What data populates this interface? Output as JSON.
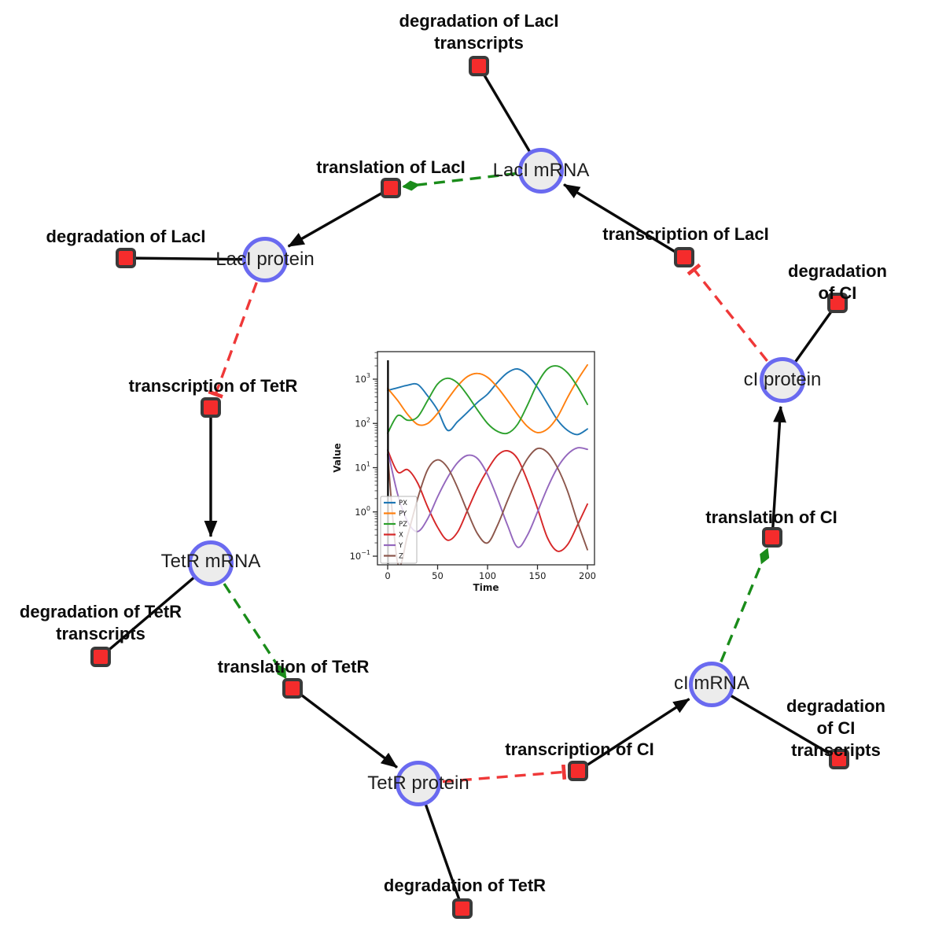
{
  "diagram": {
    "species": [
      {
        "id": "laci-mrna",
        "label": "LacI mRNA"
      },
      {
        "id": "laci-protein",
        "label": "LacI protein"
      },
      {
        "id": "tetr-mrna",
        "label": "TetR mRNA"
      },
      {
        "id": "tetr-protein",
        "label": "TetR protein"
      },
      {
        "id": "ci-mrna",
        "label": "cI mRNA"
      },
      {
        "id": "ci-protein",
        "label": "cI protein"
      }
    ],
    "reactions": [
      {
        "id": "deg-laci-transcripts",
        "label": "degradation of LacI\ntranscripts"
      },
      {
        "id": "translation-laci",
        "label": "translation of LacI"
      },
      {
        "id": "deg-laci",
        "label": "degradation of LacI"
      },
      {
        "id": "transcription-laci",
        "label": "transcription of LacI"
      },
      {
        "id": "deg-ci",
        "label": "degradation of CI"
      },
      {
        "id": "transcription-tetr",
        "label": "transcription of TetR"
      },
      {
        "id": "deg-tetr-transcripts",
        "label": "degradation of TetR\ntranscripts"
      },
      {
        "id": "translation-tetr",
        "label": "translation of TetR"
      },
      {
        "id": "deg-tetr",
        "label": "degradation of TetR"
      },
      {
        "id": "transcription-ci",
        "label": "transcription of CI"
      },
      {
        "id": "deg-ci-transcripts",
        "label": "degradation of CI\ntranscripts"
      },
      {
        "id": "translation-ci",
        "label": "translation of CI"
      }
    ],
    "edges": [
      {
        "from": "LacI mRNA",
        "to": "degradation of LacI transcripts",
        "type": "consumption"
      },
      {
        "from": "LacI protein",
        "to": "degradation of LacI",
        "type": "consumption"
      },
      {
        "from": "TetR mRNA",
        "to": "degradation of TetR transcripts",
        "type": "consumption"
      },
      {
        "from": "TetR protein",
        "to": "degradation of TetR",
        "type": "consumption"
      },
      {
        "from": "cI mRNA",
        "to": "degradation of CI transcripts",
        "type": "consumption"
      },
      {
        "from": "cI protein",
        "to": "degradation of CI",
        "type": "consumption"
      },
      {
        "from": "translation of LacI",
        "to": "LacI protein",
        "type": "production"
      },
      {
        "from": "transcription of TetR",
        "to": "TetR mRNA",
        "type": "production"
      },
      {
        "from": "translation of TetR",
        "to": "TetR protein",
        "type": "production"
      },
      {
        "from": "transcription of CI",
        "to": "cI mRNA",
        "type": "production"
      },
      {
        "from": "translation of CI",
        "to": "cI protein",
        "type": "production"
      },
      {
        "from": "transcription of LacI",
        "to": "LacI mRNA",
        "type": "production"
      },
      {
        "from": "LacI mRNA",
        "to": "translation of LacI",
        "type": "catalysis"
      },
      {
        "from": "TetR mRNA",
        "to": "translation of TetR",
        "type": "catalysis"
      },
      {
        "from": "cI mRNA",
        "to": "translation of CI",
        "type": "catalysis"
      },
      {
        "from": "LacI protein",
        "to": "transcription of TetR",
        "type": "inhibition"
      },
      {
        "from": "TetR protein",
        "to": "transcription of CI",
        "type": "inhibition"
      },
      {
        "from": "cI protein",
        "to": "transcription of LacI",
        "type": "inhibition"
      }
    ],
    "colors": {
      "species_fill": "#ececec",
      "species_border": "#6a6af0",
      "reaction_fill": "#f52c2c",
      "reaction_border": "#3a3a3a",
      "plain_edge": "#0a0a0a",
      "activation_edge": "#1a8c1a",
      "inhibition_edge": "#ef3838"
    }
  },
  "chart_data": {
    "type": "line",
    "title": "",
    "xlabel": "Time",
    "ylabel": "Value",
    "yscale": "log",
    "xticks": [
      0,
      50,
      100,
      150,
      200
    ],
    "ytick_exponents": [
      3,
      2,
      1,
      0,
      -1
    ],
    "xlim": [
      -10,
      207
    ],
    "ylim": [
      0.065,
      4200
    ],
    "legend_position": "lower left",
    "x": [
      0,
      10,
      20,
      30,
      40,
      50,
      60,
      70,
      80,
      90,
      100,
      110,
      120,
      130,
      140,
      150,
      160,
      170,
      180,
      190,
      200
    ],
    "series": [
      {
        "name": "PX",
        "color": "#1f77b4",
        "values": [
          560,
          640,
          730,
          760,
          420,
          200,
          70,
          110,
          180,
          300,
          460,
          850,
          1400,
          1700,
          1250,
          650,
          280,
          120,
          70,
          56,
          75
        ]
      },
      {
        "name": "PY",
        "color": "#ff7f0e",
        "values": [
          620,
          330,
          160,
          95,
          100,
          170,
          350,
          700,
          1150,
          1350,
          1100,
          650,
          330,
          160,
          85,
          62,
          75,
          140,
          380,
          950,
          2100
        ]
      },
      {
        "name": "PZ",
        "color": "#2ca02c",
        "values": [
          60,
          150,
          118,
          140,
          330,
          780,
          1050,
          820,
          430,
          200,
          100,
          66,
          60,
          95,
          260,
          800,
          1700,
          1980,
          1400,
          680,
          270
        ]
      },
      {
        "name": "X",
        "color": "#d62728",
        "values": [
          25,
          8,
          9,
          4.5,
          1.3,
          0.45,
          0.23,
          0.35,
          1.1,
          3.5,
          9,
          19,
          24,
          16,
          5,
          1.2,
          0.26,
          0.13,
          0.18,
          0.5,
          1.5
        ]
      },
      {
        "name": "Y",
        "color": "#9467bd",
        "values": [
          25,
          2.5,
          0.6,
          0.36,
          0.7,
          2.2,
          6,
          13,
          19,
          16,
          7,
          2,
          0.5,
          0.16,
          0.3,
          1,
          3.5,
          10,
          20,
          28,
          26
        ]
      },
      {
        "name": "Z",
        "color": "#8c564b",
        "values": [
          20,
          0.07,
          0.3,
          2,
          9,
          15,
          10,
          3.5,
          1,
          0.32,
          0.2,
          0.5,
          1.8,
          6,
          16,
          27,
          22,
          10,
          3,
          0.6,
          0.14
        ]
      }
    ],
    "initial_transient_line_x": 0.3
  }
}
